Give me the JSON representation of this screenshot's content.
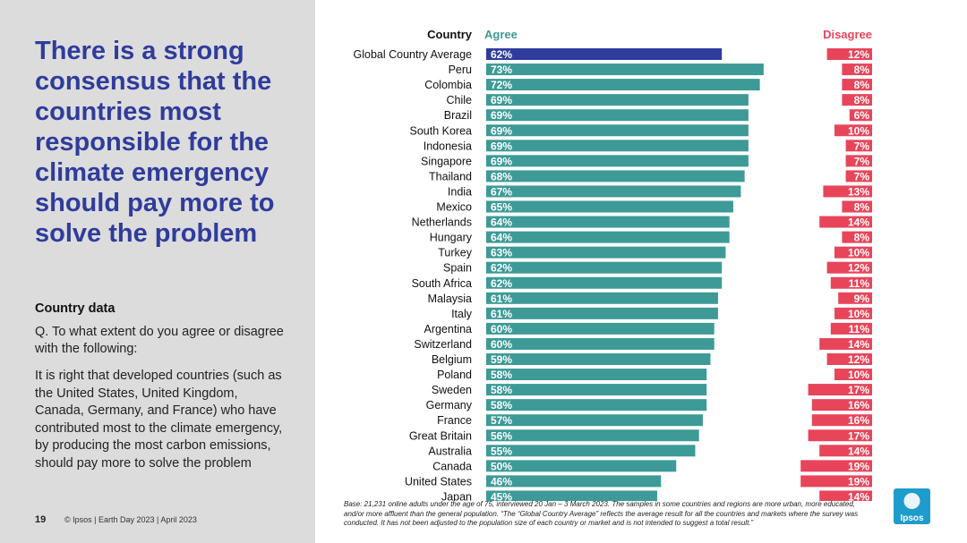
{
  "title": "There is a strong consensus that the countries most responsible for the climate emergency should pay more to solve the problem",
  "subtitle": "Country data",
  "question": "Q. To what extent do you agree or disagree with the following:",
  "statement": "It is right that developed countries (such as the United States, United Kingdom, Canada, Germany, and France) who have contributed most to the climate emergency, by producing the most carbon emissions, should pay more to solve the problem",
  "page_number": "19",
  "footer": "© Ipsos | Earth Day 2023 | April 2023",
  "base_note": "Base: 21,231 online adults under the age of 75, interviewed 20 Jan – 3 March 2023. The samples in some countries and regions are more urban, more educated, and/or more affluent than the general population. “The “Global Country Average” reflects the average result for all the countries and markets where the survey was conducted. It has not been adjusted to the population size of each country or market and is not intended to suggest a total result.”",
  "logo_text": "Ipsos",
  "colors": {
    "agree": "#3d9a97",
    "global_agree": "#2f3c9c",
    "disagree": "#e8455a",
    "agree_header": "#3d9a97",
    "disagree_header": "#e8455a",
    "logo": "#1e9ccb"
  },
  "chart_data": {
    "type": "bar",
    "orientation": "horizontal",
    "headers": {
      "category": "Country",
      "agree": "Agree",
      "disagree": "Disagree"
    },
    "categories": [
      "Global Country Average",
      "Peru",
      "Colombia",
      "Chile",
      "Brazil",
      "South Korea",
      "Indonesia",
      "Singapore",
      "Thailand",
      "India",
      "Mexico",
      "Netherlands",
      "Hungary",
      "Turkey",
      "Spain",
      "South Africa",
      "Malaysia",
      "Italy",
      "Argentina",
      "Switzerland",
      "Belgium",
      "Poland",
      "Sweden",
      "Germany",
      "France",
      "Great Britain",
      "Australia",
      "Canada",
      "United States",
      "Japan"
    ],
    "series": [
      {
        "name": "Agree",
        "values": [
          62,
          73,
          72,
          69,
          69,
          69,
          69,
          69,
          68,
          67,
          65,
          64,
          64,
          63,
          62,
          62,
          61,
          61,
          60,
          60,
          59,
          58,
          58,
          58,
          57,
          56,
          55,
          50,
          46,
          45
        ]
      },
      {
        "name": "Disagree",
        "values": [
          12,
          8,
          8,
          8,
          6,
          10,
          7,
          7,
          7,
          13,
          8,
          14,
          8,
          10,
          12,
          11,
          9,
          10,
          11,
          14,
          12,
          10,
          17,
          16,
          16,
          17,
          14,
          19,
          19,
          14
        ]
      }
    ],
    "unit": "%",
    "xlim": [
      0,
      100
    ]
  }
}
